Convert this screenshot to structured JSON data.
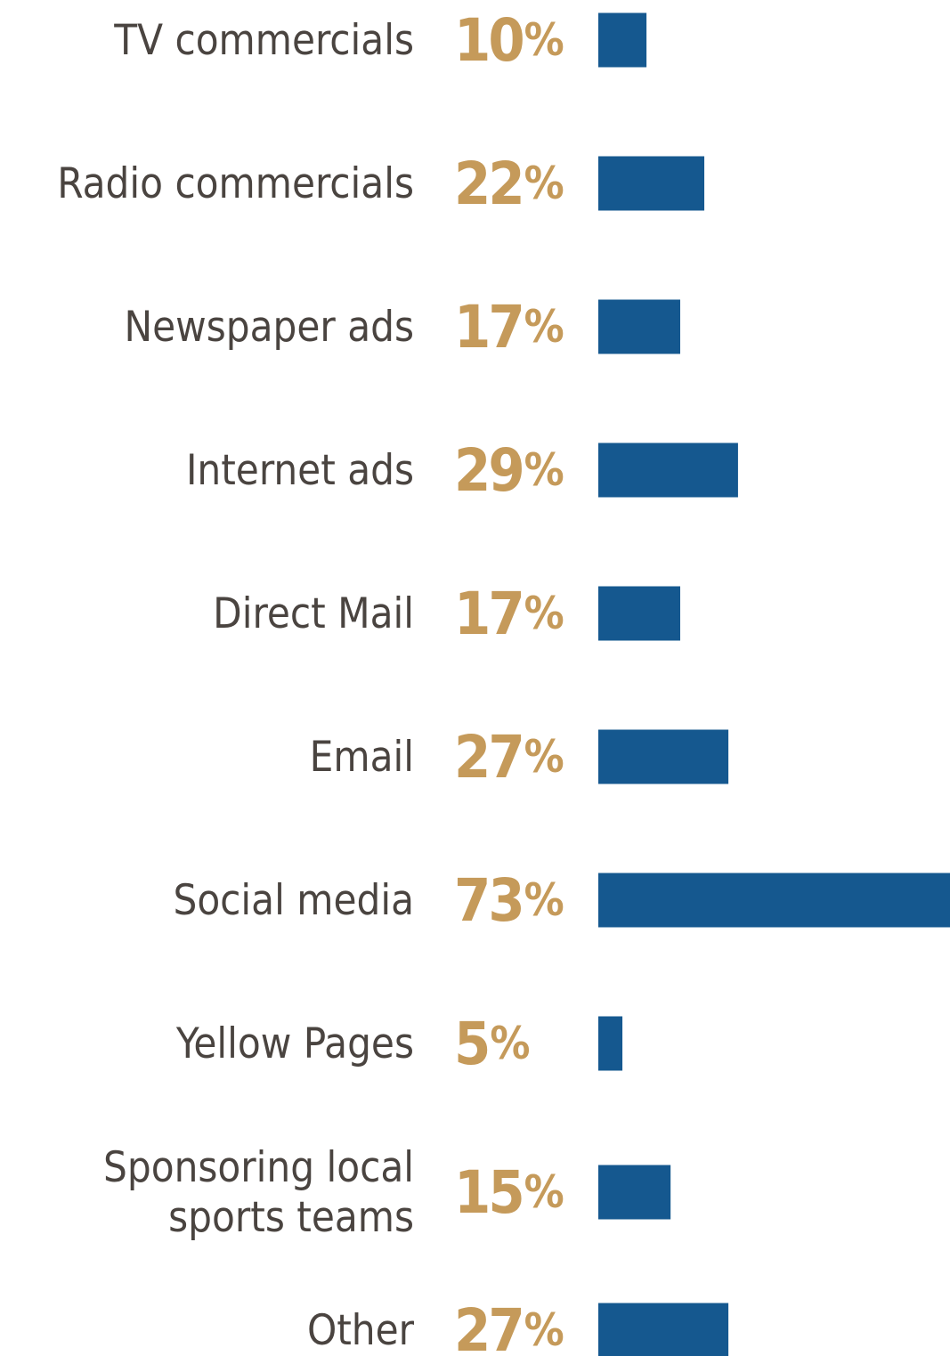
{
  "chart_data": {
    "type": "bar",
    "orientation": "horizontal",
    "categories": [
      [
        "TV commercials"
      ],
      [
        "Radio commercials"
      ],
      [
        "Newspaper ads"
      ],
      [
        "Internet ads"
      ],
      [
        "Direct Mail"
      ],
      [
        "Email"
      ],
      [
        "Social media"
      ],
      [
        "Yellow Pages"
      ],
      [
        "Sponsoring local",
        "sports teams"
      ],
      [
        "Other"
      ]
    ],
    "values": [
      10,
      22,
      17,
      29,
      17,
      27,
      73,
      5,
      15,
      27
    ],
    "value_labels": [
      "10",
      "22",
      "17",
      "29",
      "17",
      "27",
      "73",
      "5",
      "15",
      "27"
    ],
    "value_suffix": "%",
    "xlim": [
      0,
      73
    ],
    "grid": false,
    "legend": "none"
  },
  "colors": {
    "bar": "#15588f",
    "value_label": "#c59a5a",
    "category_label": "#4a4440"
  }
}
